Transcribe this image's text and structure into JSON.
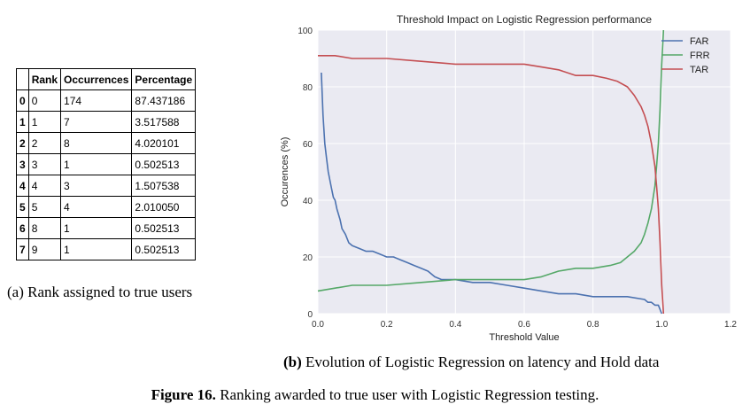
{
  "table": {
    "headers": [
      "",
      "Rank",
      "Occurrences",
      "Percentage"
    ],
    "rows": [
      {
        "index": "0",
        "rank": "0",
        "occurrences": "174",
        "percentage": "87.437186"
      },
      {
        "index": "1",
        "rank": "1",
        "occurrences": "7",
        "percentage": "3.517588"
      },
      {
        "index": "2",
        "rank": "2",
        "occurrences": "8",
        "percentage": "4.020101"
      },
      {
        "index": "3",
        "rank": "3",
        "occurrences": "1",
        "percentage": "0.502513"
      },
      {
        "index": "4",
        "rank": "4",
        "occurrences": "3",
        "percentage": "1.507538"
      },
      {
        "index": "5",
        "rank": "5",
        "occurrences": "4",
        "percentage": "2.010050"
      },
      {
        "index": "6",
        "rank": "8",
        "occurrences": "1",
        "percentage": "0.502513"
      },
      {
        "index": "7",
        "rank": "9",
        "occurrences": "1",
        "percentage": "0.502513"
      }
    ]
  },
  "captions": {
    "a_label": "(a)",
    "a_text": "Rank assigned to true users",
    "b_label": "(b)",
    "b_text": "Evolution of Logistic Regression on latency and Hold data",
    "figure_label": "Figure 16.",
    "figure_text": "Ranking awarded to true user with Logistic Regression testing."
  },
  "colors": {
    "FAR": "#4c72b0",
    "FRR": "#55a868",
    "TAR": "#c44e52",
    "plot_bg": "#eaeaf2",
    "grid": "#ffffff"
  },
  "chart_data": {
    "type": "line",
    "title": "Threshold Impact on Logistic Regression performance",
    "xlabel": "Threshold Value",
    "ylabel": "Occurences (%)",
    "xlim": [
      0.0,
      1.2
    ],
    "ylim": [
      0,
      100
    ],
    "xticks": [
      "0.0",
      "0.2",
      "0.4",
      "0.6",
      "0.8",
      "1.0",
      "1.2"
    ],
    "yticks": [
      "0",
      "20",
      "40",
      "60",
      "80",
      "100"
    ],
    "legend_position": "top-right",
    "series": [
      {
        "name": "FAR",
        "x": [
          0.01,
          0.015,
          0.02,
          0.025,
          0.03,
          0.035,
          0.04,
          0.045,
          0.05,
          0.055,
          0.06,
          0.065,
          0.07,
          0.08,
          0.09,
          0.1,
          0.12,
          0.14,
          0.16,
          0.18,
          0.2,
          0.22,
          0.24,
          0.26,
          0.28,
          0.3,
          0.32,
          0.34,
          0.36,
          0.38,
          0.4,
          0.45,
          0.5,
          0.55,
          0.6,
          0.65,
          0.7,
          0.75,
          0.8,
          0.85,
          0.9,
          0.95,
          0.96,
          0.97,
          0.98,
          0.99,
          1.0
        ],
        "y": [
          85,
          70,
          60,
          55,
          50,
          47,
          44,
          41,
          40,
          37,
          35,
          33,
          30,
          28,
          25,
          24,
          23,
          22,
          22,
          21,
          20,
          20,
          19,
          18,
          17,
          16,
          15,
          13,
          12,
          12,
          12,
          11,
          11,
          10,
          9,
          8,
          7,
          7,
          6,
          6,
          6,
          5,
          4,
          4,
          3,
          3,
          0
        ]
      },
      {
        "name": "FRR",
        "x": [
          0.0,
          0.05,
          0.1,
          0.2,
          0.3,
          0.4,
          0.5,
          0.6,
          0.65,
          0.7,
          0.75,
          0.8,
          0.85,
          0.88,
          0.9,
          0.92,
          0.94,
          0.95,
          0.96,
          0.97,
          0.98,
          0.985,
          0.99,
          0.995,
          1.0,
          1.005
        ],
        "y": [
          8,
          9,
          10,
          10,
          11,
          12,
          12,
          12,
          13,
          15,
          16,
          16,
          17,
          18,
          20,
          22,
          25,
          28,
          32,
          37,
          45,
          52,
          60,
          72,
          88,
          100
        ]
      },
      {
        "name": "TAR",
        "x": [
          0.0,
          0.05,
          0.1,
          0.2,
          0.3,
          0.4,
          0.5,
          0.6,
          0.65,
          0.7,
          0.75,
          0.8,
          0.84,
          0.87,
          0.9,
          0.92,
          0.94,
          0.95,
          0.96,
          0.97,
          0.98,
          0.985,
          0.99,
          0.995,
          1.0,
          1.005
        ],
        "y": [
          91,
          91,
          90,
          90,
          89,
          88,
          88,
          88,
          87,
          86,
          84,
          84,
          83,
          82,
          80,
          77,
          73,
          70,
          66,
          60,
          52,
          45,
          37,
          25,
          10,
          0
        ]
      }
    ]
  }
}
